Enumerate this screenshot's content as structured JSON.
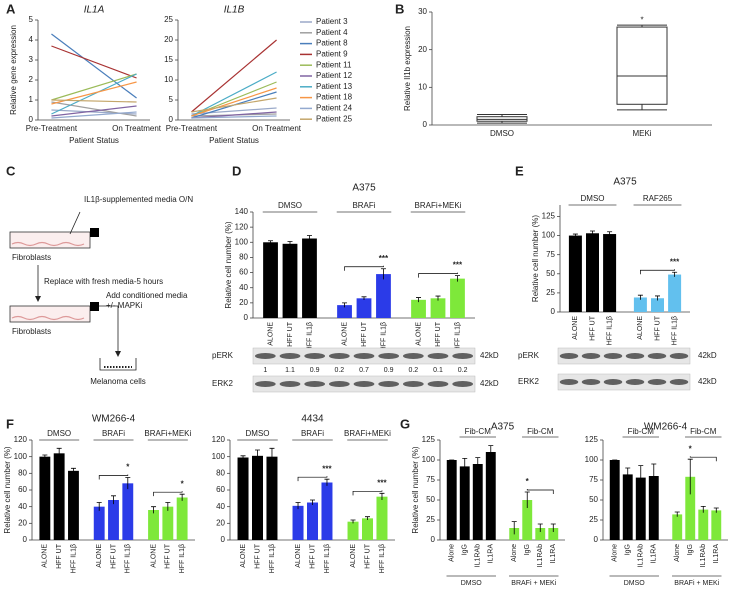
{
  "panel_labels": [
    "A",
    "B",
    "C",
    "D",
    "E",
    "F",
    "G"
  ],
  "chart_data": [
    {
      "type": "line",
      "title": "IL1A",
      "x_label": "Patient Status",
      "y_label": "Relative gene expression",
      "categories": [
        "Pre-Treatment",
        "On Treatment"
      ],
      "ylim": [
        0,
        5
      ],
      "yticks": [
        0,
        1,
        2,
        3,
        4,
        5
      ],
      "series": [
        {
          "color": "#9aa9c9",
          "values": [
            0.5,
            0.3
          ]
        },
        {
          "color": "#a0a0a0",
          "values": [
            0.9,
            0.2
          ]
        },
        {
          "color": "#4a7ebb",
          "values": [
            4.3,
            1.1
          ]
        },
        {
          "color": "#a83232",
          "values": [
            3.7,
            2.1
          ]
        },
        {
          "color": "#9bbb59",
          "values": [
            1.0,
            2.3
          ]
        },
        {
          "color": "#8064a2",
          "values": [
            0.2,
            0.7
          ]
        },
        {
          "color": "#4bacc6",
          "values": [
            0.3,
            2.3
          ]
        },
        {
          "color": "#f79646",
          "values": [
            0.8,
            1.9
          ]
        },
        {
          "color": "#93a9cf",
          "values": [
            0.1,
            0.4
          ]
        },
        {
          "color": "#c4a66a",
          "values": [
            1.0,
            0.9
          ]
        }
      ]
    },
    {
      "type": "line",
      "title": "IL1B",
      "x_label": "Patient Status",
      "legend": true,
      "categories": [
        "Pre-Treatment",
        "On Treatment"
      ],
      "ylim": [
        0,
        25
      ],
      "yticks": [
        0,
        5,
        10,
        15,
        20,
        25
      ],
      "series": [
        {
          "name": "Patient 3",
          "color": "#9aa9c9",
          "values": [
            1.5,
            3
          ]
        },
        {
          "name": "Patient 4",
          "color": "#a0a0a0",
          "values": [
            1,
            1.5
          ]
        },
        {
          "name": "Patient 8",
          "color": "#4a7ebb",
          "values": [
            0.5,
            7
          ]
        },
        {
          "name": "Patient 9",
          "color": "#a83232",
          "values": [
            2,
            20
          ]
        },
        {
          "name": "Patient 11",
          "color": "#9bbb59",
          "values": [
            1,
            9.5
          ]
        },
        {
          "name": "Patient 12",
          "color": "#8064a2",
          "values": [
            0.5,
            2
          ]
        },
        {
          "name": "Patient 13",
          "color": "#4bacc6",
          "values": [
            1,
            12
          ]
        },
        {
          "name": "Patient 18",
          "color": "#f79646",
          "values": [
            1,
            8
          ]
        },
        {
          "name": "Patient 24",
          "color": "#93a9cf",
          "values": [
            0.5,
            1
          ]
        },
        {
          "name": "Patient 25",
          "color": "#c4a66a",
          "values": [
            2,
            5.5
          ]
        }
      ]
    },
    {
      "type": "box",
      "y_label": "Relative Il1b expression",
      "categories": [
        "DMSO",
        "MEKi"
      ],
      "min": [
        0.5,
        4
      ],
      "q1": [
        1,
        5.5
      ],
      "median": [
        1.5,
        13
      ],
      "q3": [
        2.2,
        26
      ],
      "max": [
        2.8,
        26.5
      ],
      "significance": [
        null,
        "*"
      ],
      "ylim": [
        0,
        30
      ],
      "yticks": [
        0,
        10,
        20,
        30
      ]
    },
    {
      "type": "bar",
      "title": "A375",
      "y_label": "Relative cell number (%)",
      "group_label_position": "top",
      "categories": [
        "ALONE",
        "HFF UT",
        "HFF IL1β"
      ],
      "ylim": [
        0,
        140
      ],
      "yticks": [
        0,
        20,
        40,
        60,
        80,
        100,
        120,
        140
      ],
      "series": [
        {
          "name": "DMSO",
          "color": "#000000",
          "values": [
            100,
            98,
            105
          ],
          "errors": [
            2,
            3,
            4
          ],
          "significance": [
            null,
            null,
            null
          ]
        },
        {
          "name": "BRAFi",
          "color": "#2b3be8",
          "values": [
            17,
            26,
            58
          ],
          "errors": [
            3,
            2,
            7
          ],
          "significance": [
            null,
            null,
            "***"
          ]
        },
        {
          "name": "BRAFi+MEKi",
          "color": "#7ee83a",
          "values": [
            24,
            26,
            52
          ],
          "errors": [
            3,
            3,
            4
          ],
          "significance": [
            null,
            null,
            "***"
          ]
        }
      ]
    },
    {
      "type": "bar",
      "title": "A375",
      "y_label": "Relative cell number (%)",
      "group_label_position": "top",
      "categories": [
        "ALONE",
        "HFF UT",
        "HFF IL1β"
      ],
      "ylim": [
        0,
        140
      ],
      "yticks": [
        0,
        25,
        50,
        75,
        100,
        125
      ],
      "series": [
        {
          "name": "DMSO",
          "color": "#000000",
          "values": [
            100,
            103,
            102
          ],
          "errors": [
            2,
            3,
            3
          ],
          "significance": [
            null,
            null,
            null
          ]
        },
        {
          "name": "RAF265",
          "color": "#62c0ee",
          "values": [
            19,
            18,
            49
          ],
          "errors": [
            3,
            3,
            3
          ],
          "significance": [
            null,
            null,
            "***"
          ]
        }
      ]
    },
    {
      "type": "bar",
      "title": "WM266-4",
      "y_label": "Relative cell number (%)",
      "group_label_position": "top",
      "categories": [
        "ALONE",
        "HFF UT",
        "HFF IL1β"
      ],
      "ylim": [
        0,
        120
      ],
      "yticks": [
        0,
        20,
        40,
        60,
        80,
        100,
        120
      ],
      "series": [
        {
          "name": "DMSO",
          "color": "#000000",
          "values": [
            100,
            104,
            83
          ],
          "errors": [
            2,
            6,
            3
          ],
          "significance": [
            null,
            null,
            null
          ]
        },
        {
          "name": "BRAFi",
          "color": "#2b3be8",
          "values": [
            40,
            48,
            68
          ],
          "errors": [
            5,
            5,
            7
          ],
          "significance": [
            null,
            null,
            "*"
          ]
        },
        {
          "name": "BRAFi+MEKi",
          "color": "#7ee83a",
          "values": [
            36,
            40,
            51
          ],
          "errors": [
            4,
            5,
            4
          ],
          "significance": [
            null,
            null,
            "*"
          ]
        }
      ]
    },
    {
      "type": "bar",
      "title": "4434",
      "group_label_position": "top",
      "categories": [
        "ALONE",
        "HFF UT",
        "HFF IL1β"
      ],
      "ylim": [
        0,
        120
      ],
      "yticks": [
        0,
        20,
        40,
        60,
        80,
        100,
        120
      ],
      "series": [
        {
          "name": "DMSO",
          "color": "#000000",
          "values": [
            99,
            101,
            100
          ],
          "errors": [
            2,
            7,
            10
          ],
          "significance": [
            null,
            null,
            null
          ]
        },
        {
          "name": "BRAFi",
          "color": "#2b3be8",
          "values": [
            41,
            45,
            69
          ],
          "errors": [
            4,
            3,
            4
          ],
          "significance": [
            null,
            null,
            "***"
          ]
        },
        {
          "name": "BRAFi+MEKi",
          "color": "#7ee83a",
          "values": [
            22,
            26,
            52
          ],
          "errors": [
            2,
            2,
            4
          ],
          "significance": [
            null,
            null,
            "***"
          ]
        }
      ]
    },
    {
      "type": "bar",
      "title": "A375",
      "y_label": "Relative cell number (%)",
      "group_label_position": "bottom",
      "bracket_label": "Fib-CM",
      "categories": [
        "Alone",
        "IgG",
        "IL1RAb",
        "IL1RA"
      ],
      "ylim": [
        0,
        125
      ],
      "yticks": [
        0,
        25,
        50,
        75,
        100,
        125
      ],
      "series": [
        {
          "name": "DMSO",
          "color": "#000000",
          "values": [
            100,
            92,
            95,
            110
          ],
          "errors": [
            0,
            10,
            8,
            8
          ],
          "significance": [
            null,
            null,
            null,
            null
          ]
        },
        {
          "name": "BRAFi + MEKi",
          "color": "#7ee83a",
          "values": [
            15,
            50,
            15,
            15
          ],
          "errors": [
            8,
            10,
            5,
            5
          ],
          "significance": [
            null,
            "*",
            null,
            null
          ]
        }
      ]
    },
    {
      "type": "bar",
      "title": "WM266-4",
      "group_label_position": "bottom",
      "bracket_label": "Fib-CM",
      "categories": [
        "Alone",
        "IgG",
        "IL1RAb",
        "IL1RA"
      ],
      "ylim": [
        0,
        125
      ],
      "yticks": [
        0,
        25,
        50,
        75,
        100,
        125
      ],
      "series": [
        {
          "name": "DMSO",
          "color": "#000000",
          "values": [
            100,
            82,
            78,
            80
          ],
          "errors": [
            0,
            8,
            15,
            15
          ],
          "significance": [
            null,
            null,
            null,
            null
          ]
        },
        {
          "name": "BRAFi + MEKi",
          "color": "#7ee83a",
          "values": [
            32,
            79,
            38,
            37
          ],
          "errors": [
            3,
            22,
            4,
            3
          ],
          "significance": [
            null,
            "*",
            null,
            null
          ]
        }
      ]
    }
  ],
  "blots": [
    {
      "rows": [
        "pERK",
        "ERK2"
      ],
      "size": "42kD",
      "quantification": [
        1,
        1.1,
        0.9,
        0.2,
        0.7,
        0.9,
        0.2,
        0.1,
        0.2
      ]
    },
    {
      "rows": [
        "pERK",
        "ERK2"
      ],
      "size": "42kD"
    }
  ],
  "diagram": {
    "step1": "IL1β-supplemented media O/N",
    "cells1": "Fibroblasts",
    "step2": "Replace with fresh media-5 hours",
    "cells2": "Fibroblasts",
    "step3a": "Add conditioned media",
    "step3b": "+/- MAPKi",
    "target": "Melanoma cells"
  }
}
